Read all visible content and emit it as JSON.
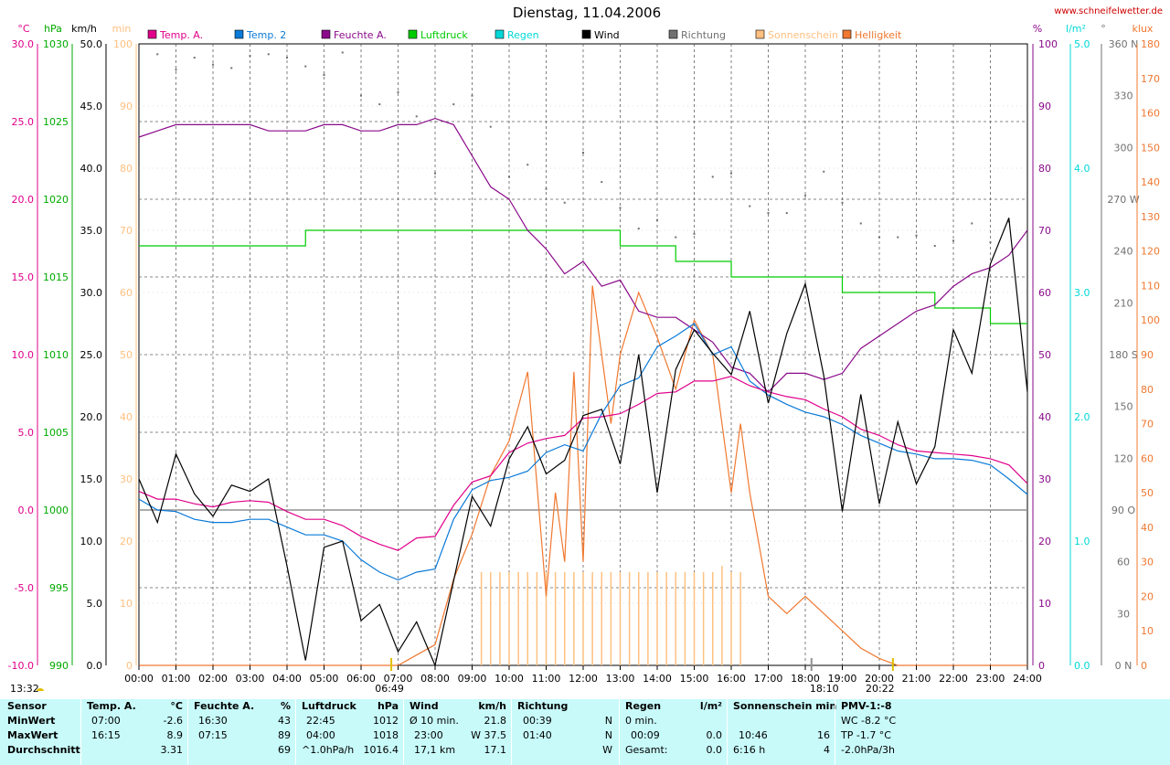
{
  "title": "Dienstag, 11.04.2006",
  "site": "www.schneifelwetter.de",
  "colors": {
    "temp_a": "#e0008a",
    "temp_2": "#0a7ad8",
    "feuchte": "#8a0a8a",
    "luftdruck": "#00cc00",
    "regen": "#00d8d8",
    "wind": "#000000",
    "richtung": "#707070",
    "sonne": "#ffc080",
    "helligkeit": "#f07830",
    "stats_bg": "#c8fafa"
  },
  "legend": [
    {
      "label": "Temp. A.",
      "color": "#e0008a"
    },
    {
      "label": "Temp. 2",
      "color": "#0a7ad8"
    },
    {
      "label": "Feuchte A.",
      "color": "#8a0a8a"
    },
    {
      "label": "Luftdruck",
      "color": "#00cc00"
    },
    {
      "label": "Regen",
      "color": "#00d8d8"
    },
    {
      "label": "Wind",
      "color": "#000000"
    },
    {
      "label": "Richtung",
      "color": "#707070"
    },
    {
      "label": "Sonnenschein",
      "color": "#ffc080"
    },
    {
      "label": "Helligkeit",
      "color": "#f07830"
    }
  ],
  "axes": {
    "temp": {
      "unit": "°C",
      "ticks": [
        "30.0",
        "25.0",
        "20.0",
        "15.0",
        "10.0",
        "5.0",
        "0.0",
        "-5.0",
        "-10.0"
      ],
      "color": "#e0008a"
    },
    "hpa": {
      "unit": "hPa",
      "ticks": [
        "1030",
        "1025",
        "1020",
        "1015",
        "1010",
        "1005",
        "1000",
        "995",
        "990"
      ],
      "color": "#00aa00"
    },
    "kmh": {
      "unit": "km/h",
      "ticks": [
        "50.0",
        "45.0",
        "40.0",
        "35.0",
        "30.0",
        "25.0",
        "20.0",
        "15.0",
        "10.0",
        "5.0",
        "0.0"
      ],
      "color": "#000000"
    },
    "min": {
      "unit": "min",
      "ticks": [
        "100",
        "90",
        "80",
        "70",
        "60",
        "50",
        "40",
        "30",
        "20",
        "10",
        "0"
      ],
      "color": "#ffc080"
    },
    "pct": {
      "unit": "%",
      "ticks": [
        "100",
        "90",
        "80",
        "70",
        "60",
        "50",
        "40",
        "30",
        "20",
        "10",
        "0"
      ],
      "color": "#8a0a8a"
    },
    "rain": {
      "unit": "l/m²",
      "ticks": [
        "5.0",
        "4.0",
        "3.0",
        "2.0",
        "1.0",
        "0.0"
      ],
      "color": "#00d8d8"
    },
    "deg": {
      "unit": "°",
      "ticks": [
        "360 N",
        "330",
        "300",
        "270 W",
        "240",
        "210",
        "180 S",
        "150",
        "120",
        "90 O",
        "60",
        "30",
        "0 N"
      ],
      "color": "#707070"
    },
    "klux": {
      "unit": "klux",
      "ticks": [
        "180",
        "170",
        "160",
        "150",
        "140",
        "130",
        "120",
        "110",
        "100",
        "90",
        "80",
        "70",
        "60",
        "50",
        "40",
        "30",
        "20",
        "10",
        "0"
      ],
      "color": "#f07830"
    },
    "time": [
      "00:00",
      "01:00",
      "02:00",
      "03:00",
      "04:00",
      "05:00",
      "06:00",
      "07:00",
      "08:00",
      "09:00",
      "10:00",
      "11:00",
      "12:00",
      "13:00",
      "14:00",
      "15:00",
      "16:00",
      "17:00",
      "18:00",
      "19:00",
      "20:00",
      "21:00",
      "22:00",
      "23:00",
      "24:00"
    ]
  },
  "markers": {
    "now": "13:32",
    "sunrise": "06:49",
    "sunset_a": "18:10",
    "sunset_b": "20:22"
  },
  "chart_data": {
    "type": "line",
    "title": "Dienstag, 11.04.2006",
    "x_range_hours": [
      0,
      24
    ],
    "series": [
      {
        "name": "Temp. A.",
        "axis": "°C",
        "x": [
          0,
          0.5,
          1,
          1.5,
          2,
          2.5,
          3,
          3.5,
          4,
          4.5,
          5,
          5.5,
          6,
          6.5,
          7,
          7.5,
          8,
          8.5,
          9,
          9.5,
          10,
          10.5,
          11,
          11.5,
          12,
          12.5,
          13,
          13.5,
          14,
          14.5,
          15,
          15.5,
          16,
          16.5,
          17,
          17.5,
          18,
          18.5,
          19,
          19.5,
          20,
          20.5,
          21,
          21.5,
          22,
          22.5,
          23,
          23.5,
          24
        ],
        "y": [
          1.2,
          0.7,
          0.7,
          0.4,
          0.2,
          0.5,
          0.6,
          0.5,
          -0.1,
          -0.6,
          -0.6,
          -1.0,
          -1.7,
          -2.2,
          -2.6,
          -1.8,
          -1.7,
          0.3,
          1.8,
          2.2,
          3.7,
          4.3,
          4.6,
          4.8,
          5.9,
          6.0,
          6.2,
          6.8,
          7.5,
          7.6,
          8.3,
          8.3,
          8.6,
          8.0,
          7.6,
          7.3,
          7.1,
          6.5,
          6.0,
          5.2,
          4.8,
          4.2,
          3.8,
          3.7,
          3.6,
          3.5,
          3.3,
          2.9,
          1.7
        ]
      },
      {
        "name": "Temp. 2",
        "axis": "°C",
        "x": [
          0,
          0.5,
          1,
          1.5,
          2,
          2.5,
          3,
          3.5,
          4,
          4.5,
          5,
          5.5,
          6,
          6.5,
          7,
          7.5,
          8,
          8.5,
          9,
          9.5,
          10,
          10.5,
          11,
          11.5,
          12,
          12.5,
          13,
          13.5,
          14,
          14.5,
          15,
          15.5,
          16,
          16.5,
          17,
          17.5,
          18,
          18.5,
          19,
          19.5,
          20,
          20.5,
          21,
          21.5,
          22,
          22.5,
          23,
          23.5,
          24
        ],
        "y": [
          0.7,
          0.0,
          -0.1,
          -0.6,
          -0.8,
          -0.8,
          -0.6,
          -0.6,
          -1.1,
          -1.6,
          -1.6,
          -2.0,
          -3.2,
          -4.0,
          -4.5,
          -4.0,
          -3.8,
          -0.6,
          1.3,
          1.9,
          2.1,
          2.5,
          3.7,
          4.2,
          3.8,
          6.2,
          8.0,
          8.5,
          10.5,
          11.2,
          12.0,
          10.0,
          10.5,
          8.3,
          7.4,
          6.8,
          6.3,
          6.0,
          5.5,
          4.8,
          4.3,
          3.8,
          3.6,
          3.3,
          3.3,
          3.2,
          2.9,
          2.0,
          1.0
        ]
      },
      {
        "name": "Feuchte A.",
        "axis": "%",
        "x": [
          0,
          0.5,
          1,
          1.5,
          2,
          2.5,
          3,
          3.5,
          4,
          4.5,
          5,
          5.5,
          6,
          6.5,
          7,
          7.5,
          8,
          8.5,
          9,
          9.5,
          10,
          10.5,
          11,
          11.5,
          12,
          12.5,
          13,
          13.5,
          14,
          14.5,
          15,
          15.5,
          16,
          16.5,
          17,
          17.5,
          18,
          18.5,
          19,
          19.5,
          20,
          20.5,
          21,
          21.5,
          22,
          22.5,
          23,
          23.5,
          24
        ],
        "y": [
          85,
          86,
          87,
          87,
          87,
          87,
          87,
          86,
          86,
          86,
          87,
          87,
          86,
          86,
          87,
          87,
          88,
          87,
          82,
          77,
          75,
          70,
          67,
          63,
          65,
          61,
          62,
          57,
          56,
          56,
          54,
          52,
          48,
          47,
          44,
          47,
          47,
          46,
          47,
          51,
          53,
          55,
          57,
          58,
          61,
          63,
          64,
          66,
          70
        ]
      },
      {
        "name": "Luftdruck",
        "axis": "hPa",
        "x": [
          0,
          0.5,
          1,
          1.5,
          2,
          2.5,
          3,
          3.5,
          4,
          4.5,
          5,
          5.5,
          6,
          6.5,
          7,
          7.5,
          8,
          8.5,
          9,
          9.5,
          10,
          10.5,
          11,
          11.5,
          12,
          12.5,
          13,
          13.5,
          14,
          14.5,
          15,
          15.5,
          16,
          16.5,
          17,
          17.5,
          18,
          18.5,
          19,
          19.5,
          20,
          20.5,
          21,
          21.5,
          22,
          22.5,
          23,
          23.5,
          24
        ],
        "y": [
          1017,
          1017,
          1017,
          1017,
          1017,
          1017,
          1017,
          1017,
          1017,
          1018,
          1018,
          1018,
          1018,
          1018,
          1018,
          1018,
          1018,
          1018,
          1018,
          1018,
          1018,
          1018,
          1018,
          1018,
          1018,
          1018,
          1017,
          1017,
          1017,
          1016,
          1016,
          1016,
          1015,
          1015,
          1015,
          1015,
          1015,
          1015,
          1014,
          1014,
          1014,
          1014,
          1014,
          1013,
          1013,
          1013,
          1012,
          1012,
          1012
        ]
      },
      {
        "name": "Wind",
        "axis": "km/h",
        "x": [
          0,
          0.5,
          1,
          1.5,
          2,
          2.5,
          3,
          3.5,
          4,
          4.5,
          5,
          5.5,
          6,
          6.5,
          7,
          7.5,
          8,
          8.5,
          9,
          9.5,
          10,
          10.5,
          11,
          11.5,
          12,
          12.5,
          13,
          13.5,
          14,
          14.5,
          15,
          15.5,
          16,
          16.5,
          17,
          17.5,
          18,
          18.5,
          19,
          19.5,
          20,
          20.5,
          21,
          21.5,
          22,
          22.5,
          23,
          23.5,
          24
        ],
        "y": [
          15,
          11.5,
          17,
          13.8,
          12,
          14.5,
          14,
          15,
          8,
          0.4,
          9.5,
          10,
          3.6,
          4.9,
          1.1,
          3.5,
          0,
          6.8,
          13.6,
          11.2,
          16.6,
          19.2,
          15.4,
          16.5,
          20.1,
          20.6,
          16.2,
          25,
          13.9,
          23.8,
          27,
          25.1,
          23.4,
          28.5,
          21.1,
          26.7,
          30.7,
          23.3,
          12.4,
          21.8,
          13,
          19.6,
          14.6,
          17.6,
          27,
          23.5,
          32.3,
          36,
          22
        ]
      },
      {
        "name": "Helligkeit",
        "axis": "klux",
        "x": [
          0,
          6.5,
          7,
          7.5,
          8,
          8.5,
          9,
          9.5,
          10,
          10.5,
          11,
          11.25,
          11.5,
          11.75,
          12,
          12.25,
          12.5,
          12.75,
          13,
          13.5,
          14,
          14.5,
          15,
          15.5,
          16,
          16.25,
          16.5,
          17,
          17.5,
          18,
          18.5,
          19,
          19.5,
          20,
          20.5,
          24
        ],
        "y": [
          0,
          0,
          0,
          3,
          6,
          25,
          38,
          55,
          65,
          85,
          20,
          50,
          30,
          85,
          30,
          110,
          90,
          70,
          90,
          108,
          95,
          80,
          100,
          90,
          50,
          70,
          50,
          20,
          15,
          20,
          15,
          10,
          5,
          2,
          0,
          0
        ]
      }
    ],
    "richtung_deg": {
      "x": [
        0.5,
        1,
        1.5,
        2,
        2.5,
        3,
        3.5,
        4,
        4.5,
        5,
        5.5,
        6,
        6.5,
        7,
        7.5,
        8,
        8.5,
        9,
        9.5,
        10,
        10.5,
        11,
        11.5,
        12,
        12.5,
        13,
        13.5,
        14,
        14.5,
        15,
        15.5,
        16,
        16.5,
        17,
        17.5,
        18,
        18.5,
        19,
        19.5,
        20,
        20.5,
        21,
        21.5,
        22,
        22.5,
        23,
        23.5
      ],
      "y": [
        354,
        345,
        352,
        348,
        346,
        353,
        354,
        352,
        347,
        342,
        355,
        330,
        325,
        332,
        318,
        285,
        325,
        330,
        312,
        283,
        290,
        276,
        268,
        297,
        280,
        265,
        253,
        258,
        248,
        250,
        283,
        285,
        266,
        262,
        262,
        272,
        286,
        268,
        256,
        248,
        248,
        249,
        243,
        246,
        256,
        245,
        257
      ]
    },
    "sonnenschein_min": {
      "start": 9.25,
      "end": 16.25,
      "max_value": 16,
      "bar_value": 15
    }
  },
  "stats": {
    "headers": [
      "Sensor",
      "Temp. A.",
      "°C",
      "Feuchte A.",
      "%",
      "Luftdruck",
      "hPa",
      "Wind",
      "km/h",
      "Richtung",
      "Regen",
      "l/m²",
      "Sonnenschein min",
      "PMV-1:-8"
    ],
    "rows": [
      {
        "label": "MinWert",
        "temp": [
          "07:00",
          "-2.6"
        ],
        "feuchte": [
          "16:30",
          "43"
        ],
        "druck": [
          "22:45",
          "1012"
        ],
        "wind": [
          "Ø 10 min.",
          "21.8"
        ],
        "richtung": [
          "00:39",
          "N"
        ],
        "regen": [
          "0 min.",
          ""
        ],
        "sonne": [
          "",
          ""
        ],
        "pmv": "WC -8.2 °C"
      },
      {
        "label": "MaxWert",
        "temp": [
          "16:15",
          "8.9"
        ],
        "feuchte": [
          "07:15",
          "89"
        ],
        "druck": [
          "04:00",
          "1018"
        ],
        "wind": [
          "23:00",
          "W 37.5"
        ],
        "richtung": [
          "01:40",
          "N"
        ],
        "regen": [
          "00:09",
          "0.0"
        ],
        "sonne": [
          "10:46",
          "16"
        ],
        "pmv": "TP -1.7 °C"
      },
      {
        "label": "Durchschnitt",
        "temp": [
          "",
          "3.31"
        ],
        "feuchte": [
          "",
          "69"
        ],
        "druck": [
          "^1.0hPa/h",
          "1016.4"
        ],
        "wind": [
          "17,1 km",
          "17.1"
        ],
        "richtung": [
          "",
          "W"
        ],
        "regen": [
          "Gesamt:",
          "0.0"
        ],
        "sonne": [
          "6:16 h",
          "4"
        ],
        "pmv": "-2.0hPa/3h"
      }
    ]
  }
}
